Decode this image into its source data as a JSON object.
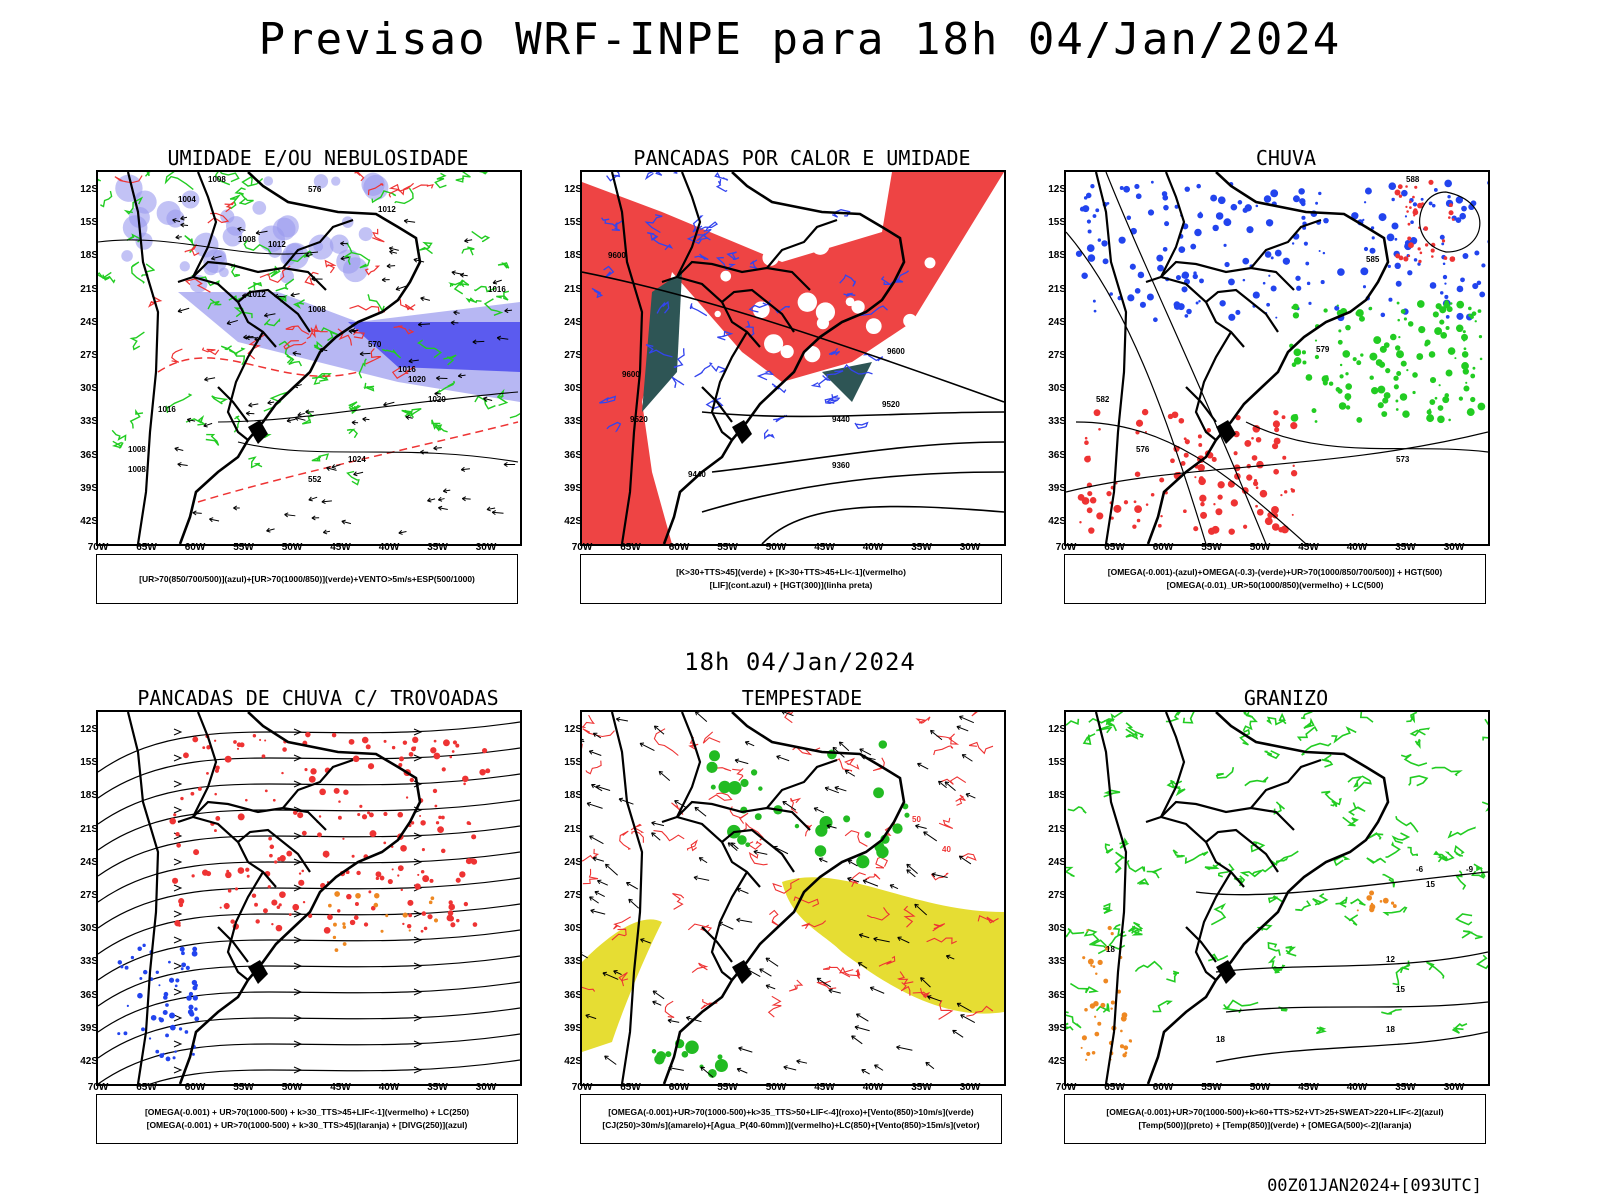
{
  "header": {
    "title": "Previsao WRF-INPE  para 18h 04/Jan/2024"
  },
  "middle_title": "18h 04/Jan/2024",
  "footer": "00Z01JAN2024+[093UTC]",
  "axes": {
    "lat_labels": [
      "12S",
      "15S",
      "18S",
      "21S",
      "24S",
      "27S",
      "30S",
      "33S",
      "36S",
      "39S",
      "42S"
    ],
    "lon_labels": [
      "70W",
      "65W",
      "60W",
      "55W",
      "50W",
      "45W",
      "40W",
      "35W",
      "30W"
    ]
  },
  "panels": [
    {
      "title": "UMIDADE E/OU NEBULOSIDADE",
      "legend": [
        "[UR>70(850/700/500)](azul)+[UR>70(1000/850)](verde)+VENTO>5m/s+ESP(500/1000)"
      ],
      "colors": {
        "fill": "#9999ee",
        "fill2": "#4444ee",
        "contour": "#22cc22",
        "dash": "#ee3333",
        "isobar": "#000000"
      },
      "labels": [
        "1008",
        "1004",
        "1008",
        "1012",
        "1016",
        "1012",
        "1008",
        "1012",
        "1016",
        "1020",
        "1024",
        "1008",
        "1008",
        "1016",
        "1020",
        "576",
        "570",
        "552"
      ]
    },
    {
      "title": "PANCADAS POR CALOR E UMIDADE",
      "legend": [
        "[K>30+TTS>45](verde) + [K>30+TTS>45+LI<-1](vermelho)",
        "[LIF](cont.azul) + [HGT(300)](linha preta)"
      ],
      "colors": {
        "fill": "#ee4444",
        "dark": "#2e5555",
        "contour": "#3344ee",
        "hgt": "#000000"
      },
      "labels": [
        "9600",
        "9600",
        "9520",
        "9520",
        "9440",
        "9440",
        "9360",
        "9600"
      ]
    },
    {
      "title": "CHUVA",
      "legend": [
        "[OMEGA(-0.001)-(azul)+OMEGA(-0.3)-(verde)+UR>70(1000/850/700/500)] + HGT(500)",
        "[OMEGA(-0.01)_UR>50(1000/850)(vermelho) + LC(500)"
      ],
      "colors": {
        "blue": "#2244ee",
        "green": "#22cc22",
        "red": "#ee3333",
        "stream": "#000000"
      },
      "labels": [
        "582",
        "576",
        "579",
        "573",
        "588",
        "585"
      ]
    },
    {
      "title": "PANCADAS DE CHUVA C/ TROVOADAS",
      "legend": [
        "[OMEGA(-0.001) + UR>70(1000-500) + k>30_TTS>45+LIF<-1](vermelho) + LC(250)",
        "[OMEGA(-0.001) + UR>70(1000-500) + k>30_TTS>45](laranja) + [DIVG(250)](azul)"
      ],
      "colors": {
        "red": "#ee3333",
        "orange": "#ee8822",
        "blue": "#2244ee",
        "stream": "#000000"
      },
      "labels": []
    },
    {
      "title": "TEMPESTADE",
      "legend": [
        "[OMEGA(-0.001)+UR>70(1000-500)+k>35_TTS>50+LIF<-4](roxo)+[Vento(850)>10m/s](verde)",
        "[CJ(250)>30m/s](amarelo)+[Agua_P(40-60mm)](vermelho)+LC(850)+[Vento(850)>15m/s](vetor)"
      ],
      "colors": {
        "yellow": "#e6dd33",
        "green": "#22bb22",
        "red": "#ee3333",
        "vector": "#000000"
      },
      "labels": [
        "50",
        "40"
      ]
    },
    {
      "title": "GRANIZO",
      "legend": [
        "[OMEGA(-0.001)+UR>70(1000-500)+k>60+TTS>52+VT>25+SWEAT>220+LIF<-2](azul)",
        "[Temp(500)](preto) + [Temp(850)](verde) + [OMEGA(500)<-2](laranja)"
      ],
      "colors": {
        "green": "#22cc22",
        "black": "#000000",
        "orange": "#ee8822"
      },
      "labels": [
        "-6",
        "-9",
        "15",
        "12",
        "15",
        "18",
        "18",
        "18"
      ]
    }
  ]
}
